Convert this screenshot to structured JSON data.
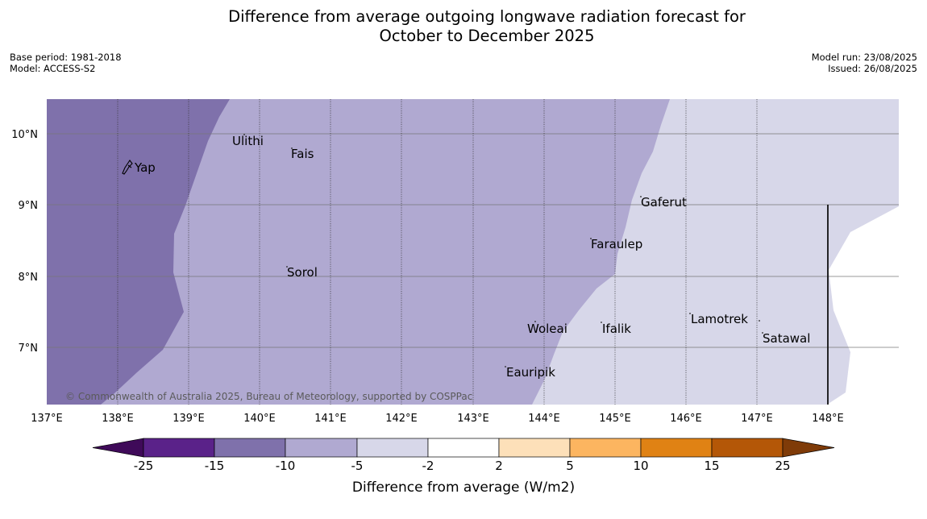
{
  "header": {
    "title_line1": "Difference from average outgoing longwave radiation forecast for",
    "title_line2": "October to December 2025",
    "base_period": "Base period: 1981-2018",
    "model": "Model: ACCESS-S2",
    "model_run": "Model run: 23/08/2025",
    "issued": "Issued: 26/08/2025"
  },
  "map": {
    "lat_ticks": [
      "10°N",
      "9°N",
      "8°N",
      "7°N"
    ],
    "lon_ticks": [
      "137°E",
      "138°E",
      "139°E",
      "140°E",
      "141°E",
      "142°E",
      "143°E",
      "144°E",
      "145°E",
      "146°E",
      "147°E",
      "148°E"
    ],
    "places": [
      {
        "name": "Yap"
      },
      {
        "name": "Ulithi"
      },
      {
        "name": "Fais"
      },
      {
        "name": "Gaferut"
      },
      {
        "name": "Faraulep"
      },
      {
        "name": "Sorol"
      },
      {
        "name": "Lamotrek"
      },
      {
        "name": "Woleai"
      },
      {
        "name": "Ifalik"
      },
      {
        "name": "Satawal"
      },
      {
        "name": "Eauripik"
      }
    ],
    "credit": "© Commonwealth of Australia 2025, Bureau of Meteorology, supported by COSPPac"
  },
  "colorbar": {
    "ticks": [
      "-25",
      "-15",
      "-10",
      "-5",
      "-2",
      "2",
      "5",
      "10",
      "15",
      "25"
    ],
    "colors": [
      "#3f0a59",
      "#5a2289",
      "#7f71ab",
      "#b0a9d1",
      "#d7d7e9",
      "#ffffff",
      "#fde0b9",
      "#fcb560",
      "#e08214",
      "#b45707",
      "#7f3b08"
    ],
    "label": "Difference from average (W/m2)"
  }
}
